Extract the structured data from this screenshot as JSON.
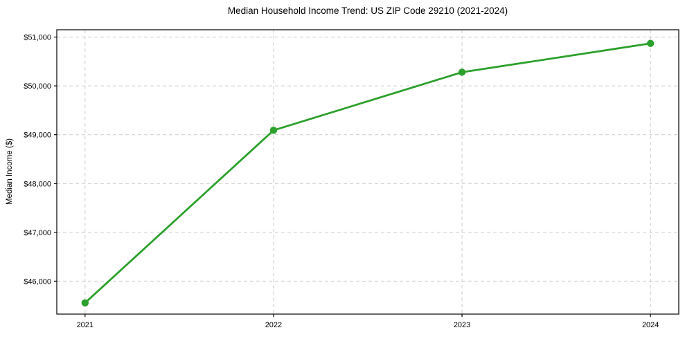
{
  "chart_data": {
    "type": "line",
    "title": "Median Household Income Trend: US ZIP Code 29210 (2021-2024)",
    "xlabel": "",
    "ylabel": "Median Income ($)",
    "x": [
      2021,
      2022,
      2023,
      2024
    ],
    "x_tick_labels": [
      "2021",
      "2022",
      "2023",
      "2024"
    ],
    "values": [
      45555,
      49090,
      50280,
      50870
    ],
    "y_ticks": [
      {
        "value": 46000,
        "label": "$46,000"
      },
      {
        "value": 47000,
        "label": "$47,000"
      },
      {
        "value": 48000,
        "label": "$48,000"
      },
      {
        "value": 49000,
        "label": "$49,000"
      },
      {
        "value": 50000,
        "label": "$50,000"
      },
      {
        "value": 51000,
        "label": "$51,000"
      }
    ],
    "xlim": [
      2020.85,
      2024.15
    ],
    "ylim": [
      45325,
      51150
    ],
    "grid": true,
    "grid_style": "dashed",
    "legend": false,
    "marker": "circle",
    "colors": {
      "line": "#2ca02c",
      "grid": "#cccccc",
      "axis": "#000000",
      "text": "#000000",
      "background": "#ffffff"
    }
  }
}
